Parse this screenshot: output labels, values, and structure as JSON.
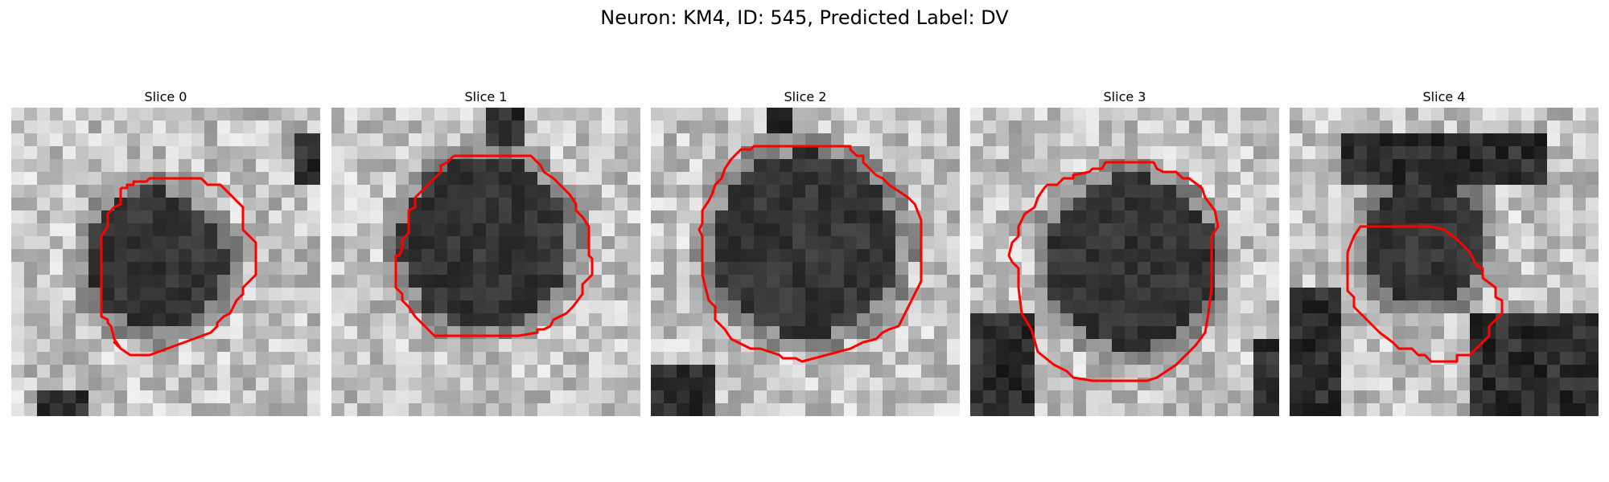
{
  "title": "Neuron: KM4, ID: 545, Predicted Label: DV",
  "outline_color": "#ff0000",
  "slices": [
    {
      "label": "Slice 0"
    },
    {
      "label": "Slice 1"
    },
    {
      "label": "Slice 2"
    },
    {
      "label": "Slice 3"
    },
    {
      "label": "Slice 4"
    }
  ]
}
